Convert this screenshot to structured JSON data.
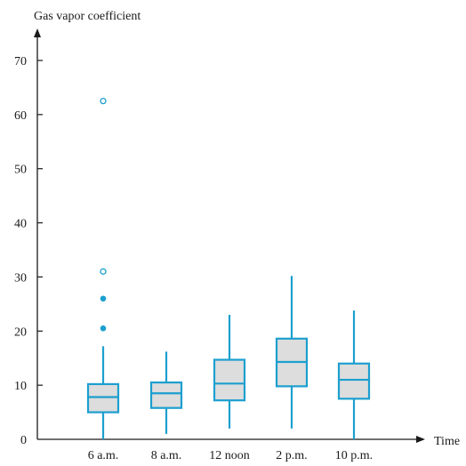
{
  "chart_data": {
    "type": "box",
    "ylabel": "Gas vapor coefficient",
    "xlabel": "Time",
    "ylim": [
      0,
      70
    ],
    "yticks": [
      0,
      10,
      20,
      30,
      40,
      50,
      60,
      70
    ],
    "categories": [
      "6 a.m.",
      "8 a.m.",
      "12 noon",
      "2 p.m.",
      "10 p.m."
    ],
    "boxes": [
      {
        "min": 0,
        "q1": 5,
        "median": 7.8,
        "q3": 10.2,
        "max": 17.2,
        "outliers_mild": [
          20.5,
          26
        ],
        "outliers_extreme": [
          31,
          62.5
        ]
      },
      {
        "min": 1,
        "q1": 5.8,
        "median": 8.5,
        "q3": 10.5,
        "max": 16.2,
        "outliers_mild": [],
        "outliers_extreme": []
      },
      {
        "min": 2,
        "q1": 7.2,
        "median": 10.3,
        "q3": 14.7,
        "max": 23,
        "outliers_mild": [],
        "outliers_extreme": []
      },
      {
        "min": 2,
        "q1": 9.8,
        "median": 14.3,
        "q3": 18.6,
        "max": 30.2,
        "outliers_mild": [],
        "outliers_extreme": []
      },
      {
        "min": 0,
        "q1": 7.5,
        "median": 11,
        "q3": 14,
        "max": 23.8,
        "outliers_mild": [],
        "outliers_extreme": []
      }
    ],
    "colors": {
      "stroke": "#1c9fcf",
      "fill": "#dddddd",
      "axis": "#1a1a1a"
    }
  }
}
